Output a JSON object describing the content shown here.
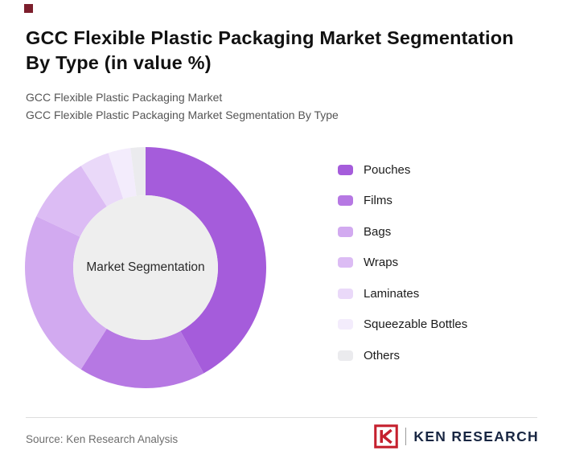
{
  "page": {
    "title": "GCC Flexible Plastic Packaging Market Segmentation By Type (in value %)",
    "subtitle_line1": "GCC Flexible Plastic Packaging Market",
    "subtitle_line2": "GCC Flexible Plastic Packaging Market Segmentation By Type",
    "source_text": "Source: Ken Research Analysis",
    "brand_text": "KEN RESEARCH",
    "accent_color": "#7c1e2c",
    "brand_red": "#c5202e",
    "brand_navy": "#182642"
  },
  "chart_data": {
    "type": "pie",
    "subtype": "donut",
    "title": "GCC Flexible Plastic Packaging Market Segmentation By Type (in value %)",
    "center_label": "Market Segmentation",
    "categories": [
      "Pouches",
      "Films",
      "Bags",
      "Wraps",
      "Laminates",
      "Squeezable Bottles",
      "Others"
    ],
    "values": [
      42,
      17,
      23,
      9,
      4,
      3,
      2
    ],
    "unit": "%",
    "colors": [
      "#a55cdb",
      "#b678e3",
      "#d2aaf0",
      "#dcbcf4",
      "#ead9f9",
      "#f3ecfc",
      "#ebebee"
    ],
    "center_fill": "#eeeeee",
    "legend_position": "right",
    "start_angle_deg": -90,
    "direction": "clockwise",
    "data_labels_shown": false
  }
}
